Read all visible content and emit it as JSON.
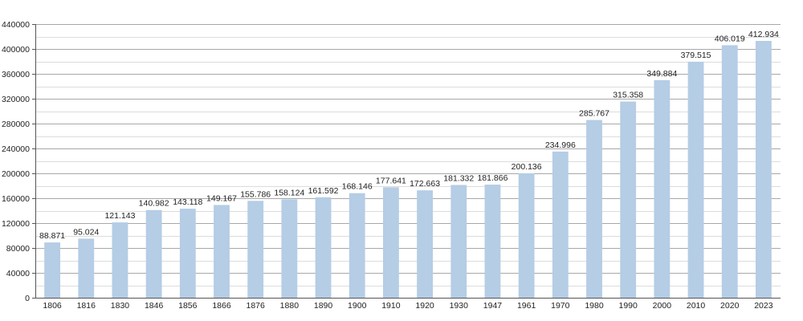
{
  "chart_data": {
    "type": "bar",
    "title": "",
    "xlabel": "",
    "ylabel": "",
    "categories": [
      "1806",
      "1816",
      "1830",
      "1846",
      "1856",
      "1866",
      "1876",
      "1880",
      "1890",
      "1900",
      "1910",
      "1920",
      "1930",
      "1947",
      "1961",
      "1970",
      "1980",
      "1990",
      "2000",
      "2010",
      "2020",
      "2023"
    ],
    "values": [
      88871,
      95024,
      121143,
      140982,
      143118,
      149167,
      155786,
      158124,
      161592,
      168146,
      177641,
      172663,
      181332,
      181866,
      200136,
      234996,
      285767,
      315358,
      349884,
      379515,
      406019,
      412934
    ],
    "data_labels": [
      "88.871",
      "95.024",
      "121.143",
      "140.982",
      "143.118",
      "149.167",
      "155.786",
      "158.124",
      "161.592",
      "168.146",
      "177.641",
      "172.663",
      "181.332",
      "181.866",
      "200.136",
      "234.996",
      "285.767",
      "315.358",
      "349.884",
      "379.515",
      "406.019",
      "412.934"
    ],
    "ylim": [
      0,
      440000
    ],
    "y_ticks": [
      0,
      40000,
      80000,
      120000,
      160000,
      200000,
      240000,
      280000,
      320000,
      360000,
      400000,
      440000
    ],
    "y_tick_labels": [
      "0",
      "40000",
      "80000",
      "120000",
      "160000",
      "200000",
      "240000",
      "280000",
      "320000",
      "360000",
      "400000",
      "440000"
    ],
    "minor_gridlines": true,
    "grid": true,
    "colors": {
      "bar": "#b5cde5",
      "major_grid": "#a8a8a8",
      "minor_grid": "#dcdcdc",
      "axis": "#555555",
      "text": "#222222"
    }
  }
}
